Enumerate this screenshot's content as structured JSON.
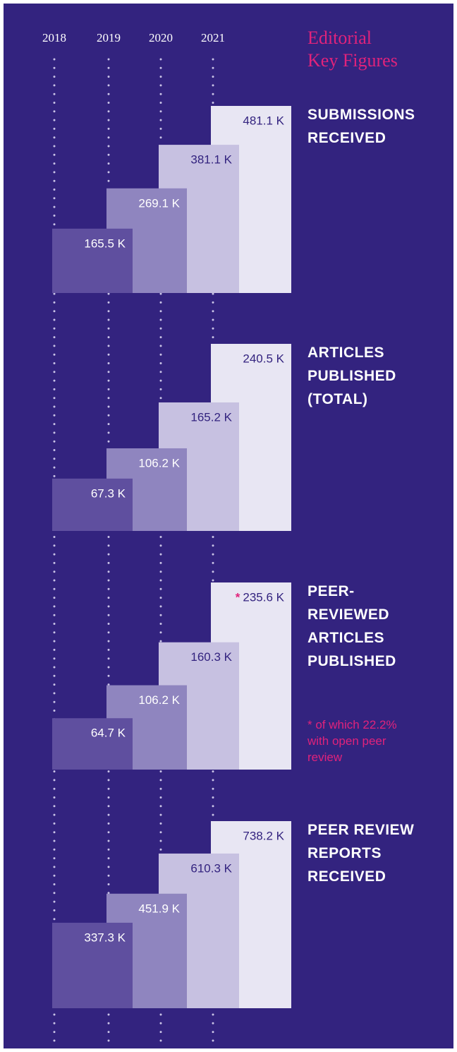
{
  "title": "Editorial\nKey Figures",
  "categories": [
    "2018",
    "2019",
    "2020",
    "2021"
  ],
  "colors": [
    "#5f4f9f",
    "#8f85bf",
    "#c7c1e1",
    "#e8e6f3"
  ],
  "label_colors": [
    "#ffffff",
    "#ffffff",
    "#33237f",
    "#33237f"
  ],
  "chart_data": [
    {
      "type": "bar",
      "title": "SUBMISSIONS\nRECEIVED",
      "values": [
        165.5,
        269.1,
        381.1,
        481.1
      ],
      "value_labels": [
        "165.5 K",
        "269.1 K",
        "381.1 K",
        "481.1 K"
      ]
    },
    {
      "type": "bar",
      "title": "ARTICLES\nPUBLISHED\n(TOTAL)",
      "values": [
        67.3,
        106.2,
        165.2,
        240.5
      ],
      "value_labels": [
        "67.3 K",
        "106.2 K",
        "165.2 K",
        "240.5 K"
      ]
    },
    {
      "type": "bar",
      "title": "PEER-\nREVIEWED\nARTICLES\nPUBLISHED",
      "values": [
        64.7,
        106.2,
        160.3,
        235.6
      ],
      "value_labels": [
        "64.7 K",
        "106.2 K",
        "160.3 K",
        "235.6 K"
      ],
      "marker": "*",
      "note": "* of which 22.2% with open peer review"
    },
    {
      "type": "bar",
      "title": "PEER REVIEW\nREPORTS\nRECEIVED",
      "values": [
        337.3,
        451.9,
        610.3,
        738.2
      ],
      "value_labels": [
        "337.3 K",
        "451.9 K",
        "610.3 K",
        "738.2 K"
      ]
    }
  ]
}
